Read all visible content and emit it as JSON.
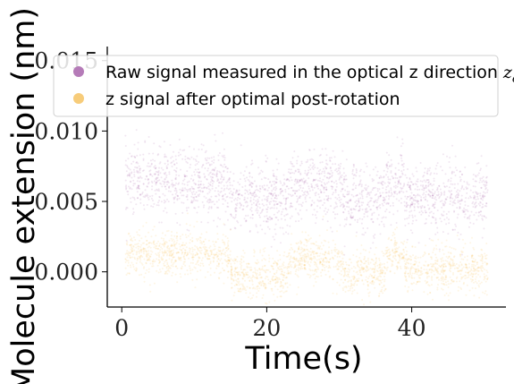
{
  "chart_data": {
    "type": "scatter",
    "title": "",
    "xlabel": "Time(s)",
    "ylabel": "Molecule extension (nm)",
    "xlim": [
      -2,
      53
    ],
    "ylim": [
      -0.0025,
      0.016
    ],
    "x_ticks": [
      0,
      20,
      40
    ],
    "x_tick_labels": [
      "0",
      "20",
      "40"
    ],
    "y_ticks": [
      0.0,
      0.005,
      0.01,
      0.015
    ],
    "y_tick_labels": [
      "0.000",
      "0.005",
      "0.010",
      "0.015"
    ],
    "grid": false,
    "legend_position": "top",
    "series": [
      {
        "name": "Raw signal measured in the optical z direction",
        "name_subscript_symbol": "z",
        "name_subscript": "o",
        "color": "#9b4f9e",
        "noise_sd": 0.0012,
        "segments": [
          {
            "x_start": 0.5,
            "x_end": 15,
            "y_mean": 0.0064
          },
          {
            "x_start": 15,
            "x_end": 23,
            "y_mean": 0.0052
          },
          {
            "x_start": 23,
            "x_end": 30.5,
            "y_mean": 0.006
          },
          {
            "x_start": 30.5,
            "x_end": 36.5,
            "y_mean": 0.0052
          },
          {
            "x_start": 36.5,
            "x_end": 39,
            "y_mean": 0.0063
          },
          {
            "x_start": 39,
            "x_end": 50.5,
            "y_mean": 0.0052
          }
        ]
      },
      {
        "name": "z signal after optimal post-rotation",
        "color": "#f5b942",
        "noise_sd": 0.0008,
        "segments": [
          {
            "x_start": 0.5,
            "x_end": 15,
            "y_mean": 0.0013
          },
          {
            "x_start": 15,
            "x_end": 23,
            "y_mean": -0.0003
          },
          {
            "x_start": 23,
            "x_end": 30.5,
            "y_mean": 0.0009
          },
          {
            "x_start": 30.5,
            "x_end": 36.5,
            "y_mean": -0.0001
          },
          {
            "x_start": 36.5,
            "x_end": 39,
            "y_mean": 0.0012
          },
          {
            "x_start": 39,
            "x_end": 50.5,
            "y_mean": 0.0002
          }
        ]
      }
    ]
  }
}
